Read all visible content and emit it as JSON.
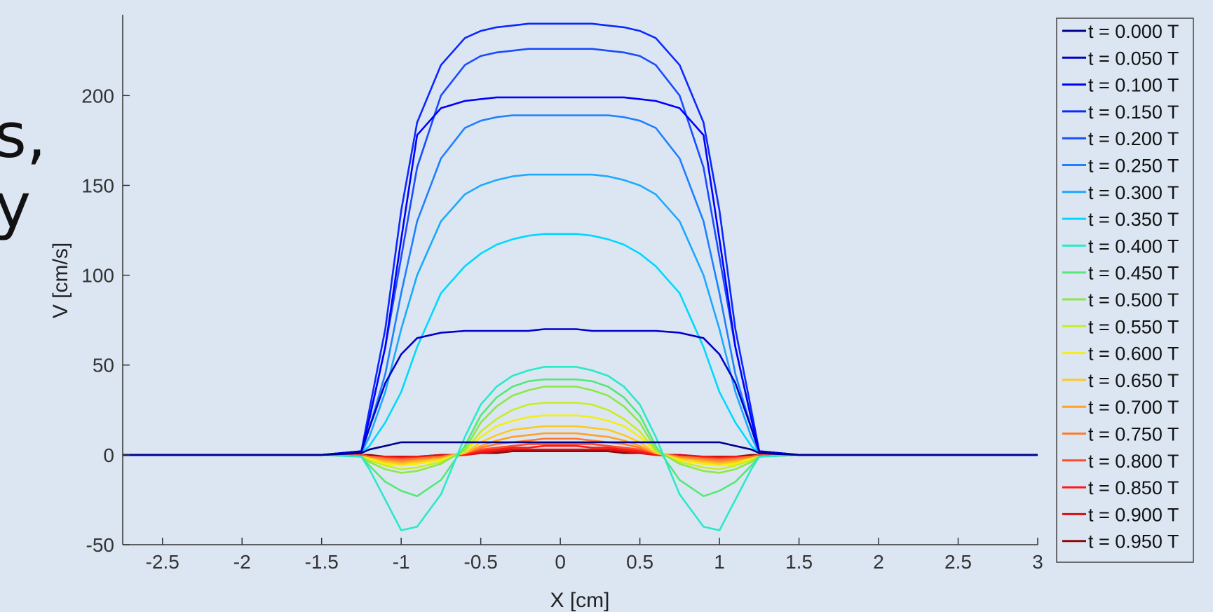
{
  "slide": {
    "fragments": [
      "s,",
      "y"
    ]
  },
  "chart_data": {
    "type": "line",
    "xlabel": "X [cm]",
    "ylabel": "V [cm/s]",
    "xlim": [
      -2.75,
      3
    ],
    "ylim": [
      -50,
      245
    ],
    "xticks": [
      -2.5,
      -2,
      -1.5,
      -1,
      -0.5,
      0,
      0.5,
      1,
      1.5,
      2,
      2.5,
      3
    ],
    "xtick_labels": [
      "-2.5",
      "-2",
      "-1.5",
      "-1",
      "-0.5",
      "0",
      "0.5",
      "1",
      "1.5",
      "2",
      "2.5",
      "3"
    ],
    "yticks": [
      -50,
      0,
      50,
      100,
      150,
      200
    ],
    "ytick_labels": [
      "-50",
      "0",
      "50",
      "100",
      "150",
      "200"
    ],
    "grid": false,
    "legend_position": "right",
    "x": [
      -2.75,
      -2.0,
      -1.5,
      -1.25,
      -1.2,
      -1.1,
      -1.0,
      -0.9,
      -0.75,
      -0.6,
      -0.5,
      -0.4,
      -0.3,
      -0.2,
      -0.1,
      0.0,
      0.1,
      0.2,
      0.3,
      0.4,
      0.5,
      0.6,
      0.75,
      0.9,
      1.0,
      1.1,
      1.2,
      1.25,
      1.5,
      2.0,
      2.5,
      3.0
    ],
    "series": [
      {
        "name": "t = 0.000 T",
        "color": "#00008f",
        "values": [
          0,
          0,
          0,
          1,
          3,
          5,
          7,
          7,
          7,
          7,
          7,
          7,
          7,
          7,
          7,
          7,
          7,
          7,
          7,
          7,
          7,
          7,
          7,
          7,
          7,
          5,
          3,
          1,
          0,
          0,
          0,
          0
        ]
      },
      {
        "name": "t = 0.050 T",
        "color": "#0000c8",
        "values": [
          0,
          0,
          0,
          2,
          15,
          40,
          56,
          65,
          68,
          69,
          69,
          69,
          69,
          69,
          70,
          70,
          70,
          69,
          69,
          69,
          69,
          69,
          68,
          65,
          56,
          40,
          15,
          2,
          0,
          0,
          0,
          0
        ]
      },
      {
        "name": "t = 0.100 T",
        "color": "#0000ff",
        "values": [
          0,
          0,
          0,
          2,
          20,
          60,
          120,
          178,
          193,
          197,
          198,
          199,
          199,
          199,
          199,
          199,
          199,
          199,
          199,
          199,
          198,
          197,
          193,
          178,
          120,
          60,
          20,
          2,
          0,
          0,
          0,
          0
        ]
      },
      {
        "name": "t = 0.150 T",
        "color": "#0a28ff",
        "values": [
          0,
          0,
          0,
          2,
          25,
          70,
          136,
          185,
          217,
          232,
          236,
          238,
          239,
          240,
          240,
          240,
          240,
          240,
          239,
          238,
          236,
          232,
          217,
          185,
          136,
          70,
          25,
          2,
          0,
          0,
          0,
          0
        ]
      },
      {
        "name": "t = 0.200 T",
        "color": "#1a4cff",
        "values": [
          0,
          0,
          0,
          2,
          20,
          60,
          110,
          160,
          200,
          217,
          222,
          224,
          225,
          226,
          226,
          226,
          226,
          226,
          225,
          224,
          222,
          217,
          200,
          160,
          110,
          60,
          20,
          2,
          0,
          0,
          0,
          0
        ]
      },
      {
        "name": "t = 0.250 T",
        "color": "#1e7fff",
        "values": [
          0,
          0,
          0,
          1,
          15,
          45,
          90,
          130,
          165,
          182,
          186,
          188,
          189,
          189,
          189,
          189,
          189,
          189,
          189,
          188,
          186,
          182,
          165,
          130,
          90,
          45,
          15,
          1,
          0,
          0,
          0,
          0
        ]
      },
      {
        "name": "t = 0.300 T",
        "color": "#1ca8ff",
        "values": [
          0,
          0,
          0,
          1,
          10,
          35,
          70,
          100,
          130,
          145,
          150,
          153,
          155,
          156,
          156,
          156,
          156,
          156,
          155,
          153,
          150,
          145,
          130,
          100,
          70,
          35,
          10,
          1,
          0,
          0,
          0,
          0
        ]
      },
      {
        "name": "t = 0.350 T",
        "color": "#00d8ff",
        "values": [
          0,
          0,
          0,
          1,
          5,
          18,
          35,
          60,
          90,
          105,
          112,
          117,
          120,
          122,
          123,
          123,
          123,
          122,
          120,
          117,
          112,
          105,
          90,
          60,
          35,
          18,
          5,
          1,
          0,
          0,
          0,
          0
        ]
      },
      {
        "name": "t = 0.400 T",
        "color": "#2ce8c8",
        "values": [
          0,
          0,
          0,
          -1,
          -8,
          -25,
          -42,
          -40,
          -22,
          10,
          28,
          38,
          44,
          47,
          49,
          49,
          49,
          47,
          44,
          38,
          28,
          10,
          -22,
          -40,
          -42,
          -25,
          -8,
          -1,
          0,
          0,
          0,
          0
        ]
      },
      {
        "name": "t = 0.450 T",
        "color": "#54e878",
        "values": [
          0,
          0,
          0,
          -1,
          -6,
          -15,
          -20,
          -23,
          -14,
          5,
          22,
          32,
          38,
          41,
          42,
          42,
          42,
          41,
          38,
          32,
          22,
          5,
          -14,
          -23,
          -20,
          -15,
          -6,
          -1,
          0,
          0,
          0,
          0
        ]
      },
      {
        "name": "t = 0.500 T",
        "color": "#8ae848",
        "values": [
          0,
          0,
          0,
          -1,
          -4,
          -8,
          -10,
          -9,
          -5,
          3,
          18,
          27,
          33,
          36,
          38,
          38,
          38,
          36,
          33,
          27,
          18,
          3,
          -5,
          -9,
          -10,
          -8,
          -4,
          -1,
          0,
          0,
          0,
          0
        ]
      },
      {
        "name": "t = 0.550 T",
        "color": "#c8ec26",
        "values": [
          0,
          0,
          0,
          -1,
          -3,
          -6,
          -8,
          -7,
          -4,
          2,
          13,
          20,
          25,
          28,
          29,
          29,
          29,
          28,
          25,
          20,
          13,
          2,
          -4,
          -7,
          -8,
          -6,
          -3,
          -1,
          0,
          0,
          0,
          0
        ]
      },
      {
        "name": "t = 0.600 T",
        "color": "#f5ee10",
        "values": [
          0,
          0,
          0,
          -1,
          -2,
          -5,
          -6,
          -5,
          -3,
          2,
          10,
          16,
          19,
          21,
          22,
          22,
          22,
          21,
          19,
          16,
          10,
          2,
          -3,
          -5,
          -6,
          -5,
          -2,
          -1,
          0,
          0,
          0,
          0
        ]
      },
      {
        "name": "t = 0.650 T",
        "color": "#ffc820",
        "values": [
          0,
          0,
          0,
          -1,
          -2,
          -4,
          -5,
          -4,
          -2,
          1,
          7,
          11,
          14,
          15,
          16,
          16,
          16,
          15,
          14,
          11,
          7,
          1,
          -2,
          -4,
          -5,
          -4,
          -2,
          -1,
          0,
          0,
          0,
          0
        ]
      },
      {
        "name": "t = 0.700 T",
        "color": "#ffa028",
        "values": [
          0,
          0,
          0,
          -1,
          -2,
          -3,
          -4,
          -3,
          -2,
          1,
          5,
          8,
          10,
          11,
          12,
          12,
          12,
          11,
          10,
          8,
          5,
          1,
          -2,
          -3,
          -4,
          -3,
          -2,
          -1,
          0,
          0,
          0,
          0
        ]
      },
      {
        "name": "t = 0.750 T",
        "color": "#ff7a30",
        "values": [
          0,
          0,
          0,
          -1,
          -1,
          -2,
          -3,
          -2,
          -1,
          1,
          4,
          6,
          7,
          8,
          9,
          9,
          9,
          8,
          7,
          6,
          4,
          1,
          -1,
          -2,
          -3,
          -2,
          -1,
          -1,
          0,
          0,
          0,
          0
        ]
      },
      {
        "name": "t = 0.800 T",
        "color": "#ff4a2c",
        "values": [
          0,
          0,
          0,
          0,
          -1,
          -2,
          -2,
          -2,
          -1,
          1,
          3,
          4,
          5,
          6,
          6,
          6,
          6,
          6,
          5,
          4,
          3,
          1,
          -1,
          -2,
          -2,
          -2,
          -1,
          0,
          0,
          0,
          0,
          0
        ]
      },
      {
        "name": "t = 0.850 T",
        "color": "#ff1818",
        "values": [
          0,
          0,
          0,
          0,
          -1,
          -1,
          -2,
          -1,
          -1,
          0,
          2,
          3,
          4,
          4,
          5,
          5,
          5,
          4,
          4,
          3,
          2,
          0,
          -1,
          -1,
          -2,
          -1,
          -1,
          0,
          0,
          0,
          0,
          0
        ]
      },
      {
        "name": "t = 0.900 T",
        "color": "#d81010",
        "values": [
          0,
          0,
          0,
          0,
          -1,
          -1,
          -1,
          -1,
          0,
          0,
          1,
          2,
          3,
          3,
          3,
          3,
          3,
          3,
          3,
          2,
          1,
          0,
          0,
          -1,
          -1,
          -1,
          -1,
          0,
          0,
          0,
          0,
          0
        ]
      },
      {
        "name": "t = 0.950 T",
        "color": "#8c0a0a",
        "values": [
          0,
          0,
          0,
          0,
          0,
          -1,
          -1,
          -1,
          0,
          0,
          1,
          1,
          2,
          2,
          2,
          2,
          2,
          2,
          2,
          1,
          1,
          0,
          0,
          -1,
          -1,
          -1,
          0,
          0,
          0,
          0,
          0,
          0
        ]
      }
    ]
  }
}
